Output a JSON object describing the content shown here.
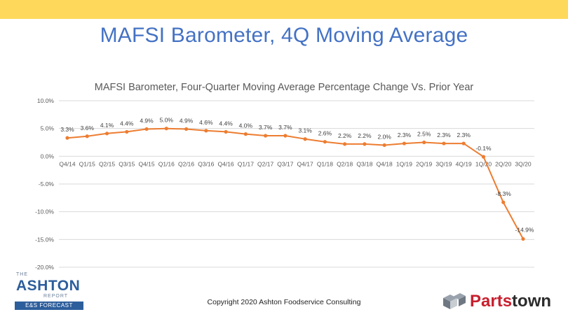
{
  "slide": {
    "title": "MAFSI Barometer, 4Q Moving Average",
    "copyright": "Copyright 2020 Ashton Foodservice Consulting"
  },
  "logos": {
    "ashton": {
      "the": "THE",
      "name": "ASHTON",
      "report": "REPORT",
      "band": "E&S FORECAST"
    },
    "partstown": {
      "part1": "Parts",
      "part2": "town",
      "icon": "partstown-cube-icon"
    }
  },
  "colors": {
    "accent_bar": "#fdd85a",
    "title": "#4472c4",
    "series": "#ed7d31",
    "gridline": "#d9d9d9"
  },
  "chart_data": {
    "type": "line",
    "title": "MAFSI Barometer, Four-Quarter Moving Average Percentage Change Vs. Prior Year",
    "xlabel": "",
    "ylabel": "",
    "ylim": [
      -20,
      10
    ],
    "yticks": [
      "10.0%",
      "5.0%",
      "0.0%",
      "-5.0%",
      "-10.0%",
      "-15.0%",
      "-20.0%"
    ],
    "ytick_values": [
      10,
      5,
      0,
      -5,
      -10,
      -15,
      -20
    ],
    "grid": true,
    "legend": "none",
    "categories": [
      "Q4/14",
      "Q1/15",
      "Q2/15",
      "Q3/15",
      "Q4/15",
      "Q1/16",
      "Q2/16",
      "Q3/16",
      "Q4/16",
      "Q1/17",
      "Q2/17",
      "Q3/17",
      "Q4/17",
      "Q1/18",
      "Q2/18",
      "Q3/18",
      "Q4/18",
      "1Q/19",
      "2Q/19",
      "3Q/19",
      "4Q/19",
      "1Q/20",
      "2Q/20",
      "3Q/20"
    ],
    "values": [
      3.3,
      3.6,
      4.1,
      4.4,
      4.9,
      5.0,
      4.9,
      4.6,
      4.4,
      4.0,
      3.7,
      3.7,
      3.1,
      2.6,
      2.2,
      2.2,
      2.0,
      2.3,
      2.5,
      2.3,
      2.3,
      -0.1,
      -8.3,
      -14.9
    ],
    "data_labels": [
      "3.3%",
      "3.6%",
      "4.1%",
      "4.4%",
      "4.9%",
      "5.0%",
      "4.9%",
      "4.6%",
      "4.4%",
      "4.0%",
      "3.7%",
      "3.7%",
      "3.1%",
      "2.6%",
      "2.2%",
      "2.2%",
      "2.0%",
      "2.3%",
      "2.5%",
      "2.3%",
      "2.3%",
      "-0.1%",
      "-8.3%",
      "-14.9%"
    ]
  }
}
